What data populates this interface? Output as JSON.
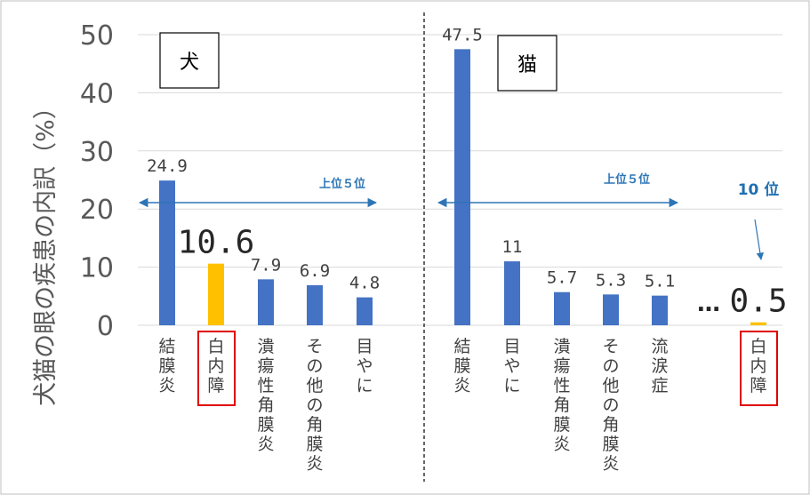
{
  "colors": {
    "bar": "#4472c4",
    "highlight": "#ffc000",
    "arrow": "#2e75b6",
    "cat_box": "#e00000"
  },
  "chart_data": {
    "type": "bar",
    "ylabel": "犬猫の眼の疾患の内訳（%）",
    "ylim": [
      0,
      50
    ],
    "yticks": [
      0,
      10,
      20,
      30,
      40,
      50
    ],
    "grid": true,
    "panels": [
      {
        "title": "犬",
        "categories": [
          "結膜炎",
          "白内障",
          "潰瘍性角膜炎",
          "その他の角膜炎",
          "目やに"
        ],
        "values": [
          24.9,
          10.6,
          7.9,
          6.9,
          4.8
        ],
        "value_labels": [
          "24.9",
          "10.6",
          "7.9",
          "6.9",
          "4.8"
        ],
        "highlight_index": 1,
        "range_label": "上位５位"
      },
      {
        "title": "猫",
        "categories": [
          "結膜炎",
          "目やに",
          "潰瘍性角膜炎",
          "その他の角膜炎",
          "流涙症",
          "白内障"
        ],
        "values": [
          47.5,
          11,
          5.7,
          5.3,
          5.1,
          0.5
        ],
        "value_labels": [
          "47.5",
          "11",
          "5.7",
          "5.3",
          "5.1",
          "0.5"
        ],
        "highlight_index": 5,
        "range_label": "上位５位",
        "rank_label": "10 位",
        "ellipsis": "…"
      }
    ]
  }
}
